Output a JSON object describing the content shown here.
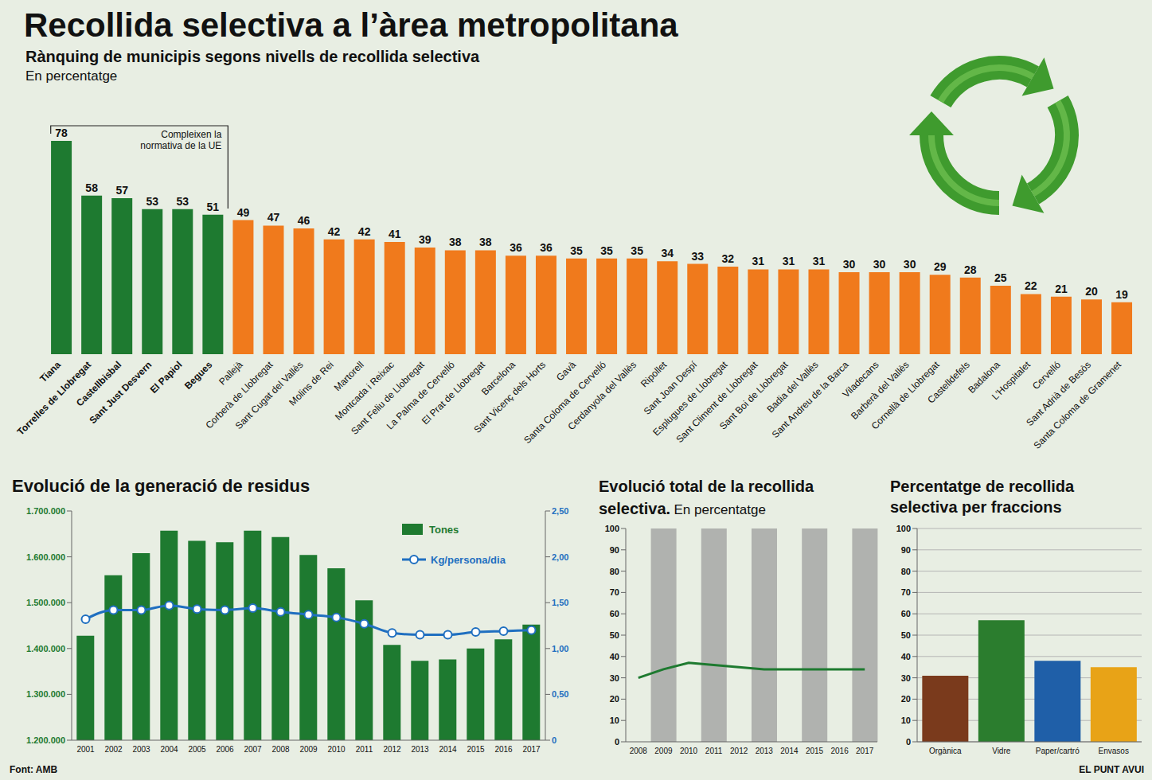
{
  "title": "Recollida selectiva a l’àrea metropolitana",
  "source": "Font: AMB",
  "credit": "EL PUNT AVUI",
  "chart_data": [
    {
      "type": "bar",
      "title": "Rànquing de municipis segons nivells de recollida selectiva",
      "subtitle": "En percentatge",
      "annotation": "Compleixen la normativa de la UE",
      "categories": [
        "Tiana",
        "Torrelles de Llobregat",
        "Castellbisbal",
        "Sant Just Desvern",
        "El Papiol",
        "Begues",
        "Pallejà",
        "Corberà de Llobregat",
        "Sant Cugat del Vallès",
        "Molins de Rei",
        "Martorell",
        "Montcada i Reixac",
        "Sant Feliu de Llobregat",
        "La Palma de Cervelló",
        "El Prat de Llobregat",
        "Barcelona",
        "Sant Vicenç dels Horts",
        "Gavà",
        "Santa Coloma de Cervelló",
        "Cerdanyola del Vallès",
        "Ripollet",
        "Sant Joan Despí",
        "Esplugues de Llobregat",
        "Sant Climent de Llobregat",
        "Sant Boi de Llobregat",
        "Badia del Vallès",
        "Sant Andreu de la Barca",
        "Viladecans",
        "Barberà del Vallès",
        "Cornellà de Llobregat",
        "Castelldefels",
        "Badalona",
        "L'Hospitalet",
        "Cervelló",
        "Sant Adrià de Besòs",
        "Santa Coloma de Gramenet"
      ],
      "values": [
        78,
        58,
        57,
        53,
        53,
        51,
        49,
        47,
        46,
        42,
        42,
        41,
        39,
        38,
        38,
        36,
        36,
        35,
        35,
        35,
        34,
        33,
        32,
        31,
        31,
        31,
        30,
        30,
        30,
        29,
        28,
        25,
        22,
        21,
        20,
        19
      ],
      "colors": [
        "#1e7a30",
        "#1e7a30",
        "#1e7a30",
        "#1e7a30",
        "#1e7a30",
        "#1e7a30",
        "#f07a1c",
        "#f07a1c",
        "#f07a1c",
        "#f07a1c",
        "#f07a1c",
        "#f07a1c",
        "#f07a1c",
        "#f07a1c",
        "#f07a1c",
        "#f07a1c",
        "#f07a1c",
        "#f07a1c",
        "#f07a1c",
        "#f07a1c",
        "#f07a1c",
        "#f07a1c",
        "#f07a1c",
        "#f07a1c",
        "#f07a1c",
        "#f07a1c",
        "#f07a1c",
        "#f07a1c",
        "#f07a1c",
        "#f07a1c",
        "#f07a1c",
        "#f07a1c",
        "#f07a1c",
        "#f07a1c",
        "#f07a1c",
        "#f07a1c"
      ],
      "ylim": [
        0,
        80
      ],
      "data_labels": true,
      "tick_labels": "x",
      "grid": false
    },
    {
      "type": "bar",
      "title": "Evolució de la generació de residus",
      "categories": [
        "2001",
        "2002",
        "2003",
        "2004",
        "2005",
        "2006",
        "2007",
        "2008",
        "2009",
        "2010",
        "2011",
        "2012",
        "2013",
        "2014",
        "2015",
        "2016",
        "2017"
      ],
      "series": [
        {
          "name": "Tones",
          "type": "bar",
          "color": "#1e7a30",
          "values": [
            1428000,
            1560000,
            1608000,
            1657000,
            1635000,
            1632000,
            1657000,
            1643000,
            1604000,
            1575000,
            1505000,
            1408000,
            1373000,
            1376000,
            1400000,
            1420000,
            1452000
          ]
        },
        {
          "name": "Kg/persona/dia",
          "type": "line",
          "color": "#1f6fc0",
          "marker": "circle",
          "axis": "y2",
          "values": [
            1.32,
            1.42,
            1.42,
            1.47,
            1.43,
            1.42,
            1.44,
            1.4,
            1.37,
            1.34,
            1.27,
            1.17,
            1.15,
            1.15,
            1.18,
            1.19,
            1.2
          ]
        }
      ],
      "ylim": [
        1200000,
        1700000
      ],
      "yticks": [
        {
          "value": 1200000,
          "label": "1.200.000"
        },
        {
          "value": 1300000,
          "label": "1.300.000"
        },
        {
          "value": 1400000,
          "label": "1.400.000"
        },
        {
          "value": 1500000,
          "label": "1.500.000"
        },
        {
          "value": 1600000,
          "label": "1.600.000"
        },
        {
          "value": 1700000,
          "label": "1.700.000"
        }
      ],
      "y2lim": [
        0,
        2.5
      ],
      "y2ticks": [
        0,
        {
          "value": 0.5,
          "label": "0,50"
        },
        {
          "value": 1,
          "label": "1,00"
        },
        {
          "value": 1.5,
          "label": "1,50"
        },
        {
          "value": 2,
          "label": "2,00"
        },
        {
          "value": 2.5,
          "label": "2,50"
        }
      ],
      "legend": "upper right",
      "grid": false
    },
    {
      "type": "line",
      "title": "Evolució total de la recollida selectiva.",
      "subtitle": "En percentatge",
      "categories": [
        "2008",
        "2009",
        "2010",
        "2011",
        "2012",
        "2013",
        "2014",
        "2015",
        "2016",
        "2017"
      ],
      "values": [
        30,
        34,
        37,
        36,
        35,
        34,
        34,
        34,
        34,
        34
      ],
      "color": "#1e7a30",
      "ylim": [
        0,
        100
      ],
      "yticks": [
        0,
        10,
        20,
        30,
        40,
        50,
        60,
        70,
        80,
        90,
        100
      ],
      "grid": false
    },
    {
      "type": "bar",
      "title": "Percentatge de recollida selectiva per fraccions",
      "categories": [
        "Orgànica",
        "Vidre",
        "Paper/cartró",
        "Envasos"
      ],
      "values": [
        31,
        57,
        38,
        35
      ],
      "colors": [
        "#7a3a1c",
        "#2b7d2e",
        "#1f5fa8",
        "#e8a317"
      ],
      "ylim": [
        0,
        100
      ],
      "yticks": [
        0,
        10,
        20,
        30,
        40,
        50,
        60,
        70,
        80,
        90,
        100
      ],
      "grid": true
    }
  ]
}
